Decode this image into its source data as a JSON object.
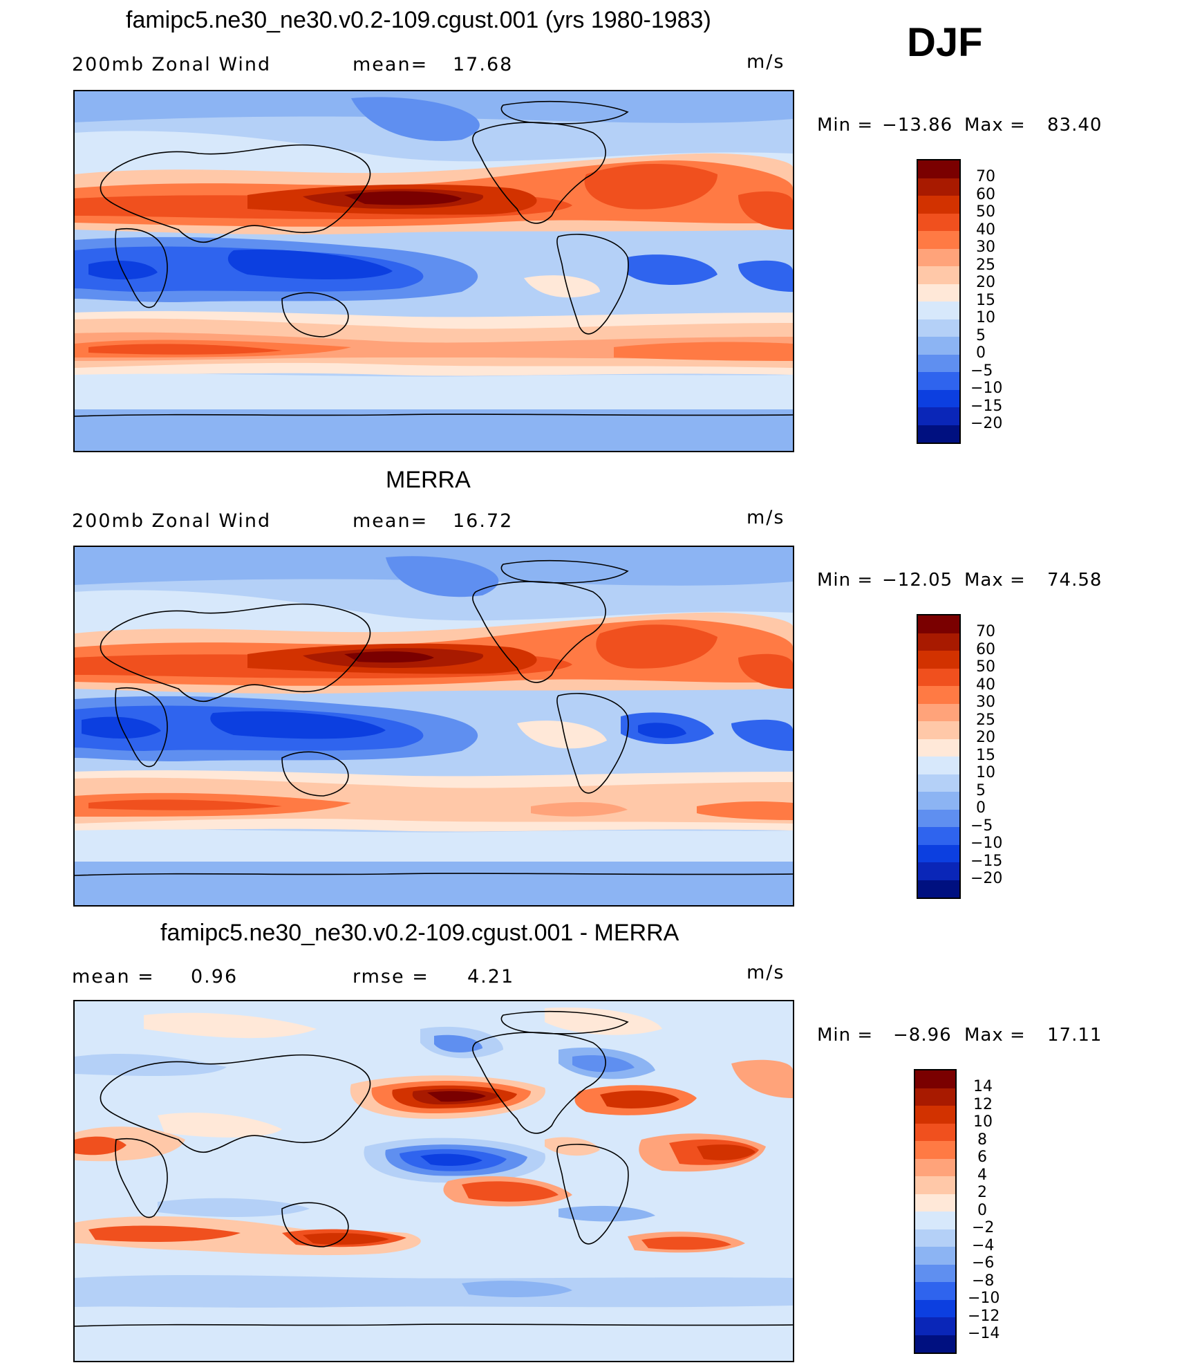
{
  "season": "DJF",
  "panels": [
    {
      "title": "famipc5.ne30_ne30.v0.2-109.cgust.001 (yrs 1980-1983)",
      "left_label": "200mb Zonal Wind",
      "mid_label": "mean=",
      "mid_value": "17.68",
      "units": "m/s",
      "min_label": "Min =",
      "min_value": "−13.86",
      "max_label": "Max =",
      "max_value": "83.40",
      "levels": [
        "70",
        "60",
        "50",
        "40",
        "30",
        "25",
        "20",
        "15",
        "10",
        "5",
        "0",
        "−5",
        "−10",
        "−15",
        "−20"
      ]
    },
    {
      "title": "MERRA",
      "left_label": "200mb Zonal Wind",
      "mid_label": "mean=",
      "mid_value": "16.72",
      "units": "m/s",
      "min_label": "Min =",
      "min_value": "−12.05",
      "max_label": "Max =",
      "max_value": "74.58",
      "levels": [
        "70",
        "60",
        "50",
        "40",
        "30",
        "25",
        "20",
        "15",
        "10",
        "5",
        "0",
        "−5",
        "−10",
        "−15",
        "−20"
      ]
    },
    {
      "title": "famipc5.ne30_ne30.v0.2-109.cgust.001 - MERRA",
      "left_label": "mean =",
      "left_value": "0.96",
      "mid_label": "rmse =",
      "mid_value": "4.21",
      "units": "m/s",
      "min_label": "Min =",
      "min_value": "−8.96",
      "max_label": "Max =",
      "max_value": "17.11",
      "levels": [
        "14",
        "12",
        "10",
        "8",
        "6",
        "4",
        "2",
        "0",
        "−2",
        "−4",
        "−6",
        "−8",
        "−10",
        "−12",
        "−14"
      ]
    }
  ],
  "colors": {
    "scale": [
      "#7a0000",
      "#a81a00",
      "#d23200",
      "#f0501e",
      "#ff7a44",
      "#ffa37a",
      "#ffc8a8",
      "#ffe8d8",
      "#d7e8fb",
      "#b4d0f7",
      "#8cb4f3",
      "#5f8ff0",
      "#2f64ee",
      "#0c3fe0",
      "#0a26b8",
      "#001080"
    ]
  }
}
